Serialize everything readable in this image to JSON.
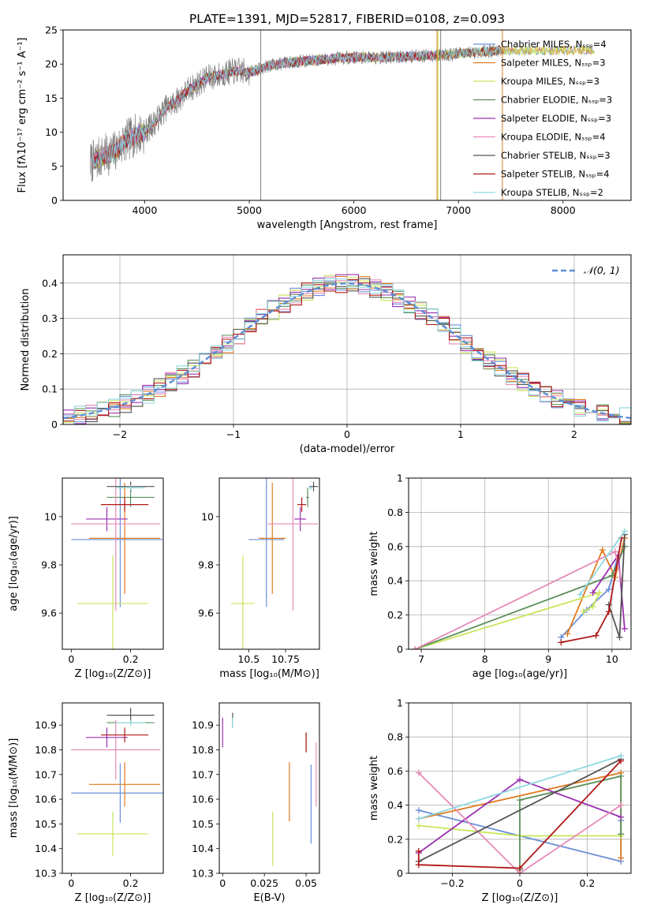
{
  "title": "PLATE=1391, MJD=52817, FIBERID=0108, z=0.093",
  "colors": [
    "#6a8fd8",
    "#e07a1f",
    "#c8e65a",
    "#5a8f5a",
    "#9a30b0",
    "#e58ab8",
    "#555555",
    "#b01818",
    "#8fd8e0"
  ],
  "chart_data": [
    {
      "id": "spectrum",
      "type": "line",
      "xlabel": "wavelength [Angstrom, rest frame]",
      "ylabel": "Flux [fλ10⁻¹⁷ erg cm⁻² s⁻¹ A⁻¹]",
      "xlim": [
        3220,
        8650
      ],
      "ylim": [
        0,
        25
      ],
      "xticks": [
        4000,
        5000,
        6000,
        7000,
        8000
      ],
      "yticks": [
        0,
        5,
        10,
        15,
        20,
        25
      ],
      "data_x": [
        3480,
        3600,
        3700,
        3800,
        3900,
        4000,
        4100,
        4200,
        4300,
        4400,
        4500,
        4600,
        4700,
        4800,
        4900,
        5000,
        5200,
        5400,
        5600,
        5800,
        6000,
        6200,
        6400,
        6600,
        6800,
        7000,
        7200,
        7400
      ],
      "data_y": [
        5.5,
        6.5,
        7.0,
        8.5,
        9.5,
        10.0,
        11.5,
        13.5,
        14.5,
        16.0,
        17.0,
        18.0,
        18.3,
        18.8,
        19.0,
        18.8,
        19.8,
        20.3,
        20.5,
        20.8,
        21.0,
        21.0,
        21.0,
        21.2,
        21.3,
        21.5,
        21.8,
        22.0
      ],
      "series": [
        {
          "name": "Chabrier MILES, Nₛₛₚ=4",
          "model_end": 8300
        },
        {
          "name": "Salpeter MILES, Nₛₛₚ=3",
          "model_end": 8300
        },
        {
          "name": "Kroupa MILES, Nₛₛₚ=3",
          "model_end": 8300
        },
        {
          "name": "Chabrier ELODIE, Nₛₛₚ=3",
          "model_end": 6800
        },
        {
          "name": "Salpeter ELODIE, Nₛₛₚ=3",
          "model_end": 6800
        },
        {
          "name": "Kroupa ELODIE, Nₛₛₚ=4",
          "model_end": 6800
        },
        {
          "name": "Chabrier STELIB, Nₛₛₚ=3",
          "model_end": 7420
        },
        {
          "name": "Salpeter STELIB, Nₛₛₚ=4",
          "model_end": 7420
        },
        {
          "name": "Kroupa STELIB, Nₛₛₚ=2",
          "model_end": 7420
        }
      ],
      "legend": "upper right"
    },
    {
      "id": "residuals",
      "type": "histogram",
      "xlabel": "(data-model)/error",
      "ylabel": "Normed distribution",
      "xlim": [
        -2.5,
        2.5
      ],
      "ylim": [
        0,
        0.48
      ],
      "xticks": [
        -2,
        -1,
        0,
        1,
        2
      ],
      "yticks": [
        0.0,
        0.1,
        0.2,
        0.3,
        0.4
      ],
      "bin_width": 0.1,
      "reference_curve": "𝒩(0, 1)",
      "legend": "upper right",
      "grid": true
    },
    {
      "id": "z-age",
      "type": "errorbar",
      "xlabel": "Z [log₁₀(Z/Z⊙)]",
      "ylabel": "age  [log₁₀(age/yr)]",
      "xlim": [
        -0.03,
        0.31
      ],
      "ylim": [
        9.45,
        10.16
      ],
      "xticks": [
        0.0,
        0.2
      ],
      "yticks": [
        9.6,
        9.8,
        10.0
      ],
      "points": [
        {
          "x": 0.165,
          "xerr": 0.165,
          "y": 9.905,
          "yerr": 0.28
        },
        {
          "x": 0.18,
          "xerr": 0.12,
          "y": 9.91,
          "yerr": 0.23
        },
        {
          "x": 0.14,
          "xerr": 0.12,
          "y": 9.64,
          "yerr": 0.2
        },
        {
          "x": 0.2,
          "xerr": 0.08,
          "y": 10.08,
          "yerr": 0.04
        },
        {
          "x": 0.12,
          "xerr": 0.07,
          "y": 9.99,
          "yerr": 0.05
        },
        {
          "x": 0.15,
          "xerr": 0.15,
          "y": 9.97,
          "yerr": 0.36
        },
        {
          "x": 0.2,
          "xerr": 0.08,
          "y": 10.125,
          "yerr": 0.02
        },
        {
          "x": 0.18,
          "xerr": 0.08,
          "y": 10.05,
          "yerr": 0.03
        },
        {
          "x": 0.2,
          "xerr": 0.05,
          "y": 10.12,
          "yerr": 0.01
        }
      ]
    },
    {
      "id": "mass-age",
      "type": "errorbar",
      "xlabel": "mass [log₁₀(M/M⊙)]",
      "ylabel": "",
      "xlim": [
        10.3,
        10.98
      ],
      "ylim": [
        9.45,
        10.16
      ],
      "xticks": [
        10.5,
        10.75
      ],
      "yticks": [
        9.6,
        9.8,
        10.0
      ],
      "points": [
        {
          "x": 10.62,
          "xerr": 0.12,
          "y": 9.905,
          "yerr": 0.28
        },
        {
          "x": 10.66,
          "xerr": 0.09,
          "y": 9.91,
          "yerr": 0.23
        },
        {
          "x": 10.46,
          "xerr": 0.08,
          "y": 9.64,
          "yerr": 0.2
        },
        {
          "x": 10.9,
          "xerr": 0.01,
          "y": 10.08,
          "yerr": 0.04
        },
        {
          "x": 10.85,
          "xerr": 0.04,
          "y": 9.99,
          "yerr": 0.05
        },
        {
          "x": 10.8,
          "xerr": 0.17,
          "y": 9.97,
          "yerr": 0.36
        },
        {
          "x": 10.94,
          "xerr": 0.03,
          "y": 10.125,
          "yerr": 0.02
        },
        {
          "x": 10.86,
          "xerr": 0.03,
          "y": 10.05,
          "yerr": 0.03
        },
        {
          "x": 10.92,
          "xerr": 0.01,
          "y": 10.12,
          "yerr": 0.01
        }
      ]
    },
    {
      "id": "age-weight",
      "type": "line",
      "xlabel": "age  [log₁₀(age/yr)]",
      "ylabel": "mass weight",
      "xlim": [
        6.8,
        10.3
      ],
      "ylim": [
        0,
        1
      ],
      "xticks": [
        7,
        8,
        9,
        10
      ],
      "yticks": [
        0.0,
        0.2,
        0.4,
        0.6,
        0.8,
        1.0
      ],
      "grid": true,
      "series": [
        {
          "x": [
            9.2,
            9.6,
            9.95,
            10.1
          ],
          "y": [
            0.07,
            0.23,
            0.35,
            0.55
          ]
        },
        {
          "x": [
            9.3,
            9.85,
            10.05,
            10.2
          ],
          "y": [
            0.09,
            0.58,
            0.42,
            0.65
          ]
        },
        {
          "x": [
            9.55,
            9.7,
            9.8,
            6.9
          ],
          "y": [
            0.22,
            0.25,
            0.33,
            0.0
          ]
        },
        {
          "x": [
            6.9,
            10.0,
            10.2
          ],
          "y": [
            0.0,
            0.43,
            0.6
          ]
        },
        {
          "x": [
            9.7,
            10.1,
            10.2
          ],
          "y": [
            0.33,
            0.55,
            0.12
          ]
        },
        {
          "x": [
            6.9,
            10.05,
            10.15
          ],
          "y": [
            0.0,
            0.57,
            0.4
          ]
        },
        {
          "x": [
            9.95,
            10.12,
            10.2
          ],
          "y": [
            0.26,
            0.07,
            0.67
          ]
        },
        {
          "x": [
            9.2,
            9.75,
            9.95,
            10.15
          ],
          "y": [
            0.04,
            0.08,
            0.22,
            0.65
          ]
        },
        {
          "x": [
            9.5,
            10.2
          ],
          "y": [
            0.32,
            0.69
          ]
        }
      ]
    },
    {
      "id": "z-mass",
      "type": "errorbar",
      "xlabel": "Z [log₁₀(Z/Z⊙)]",
      "ylabel": "mass [log₁₀(M/M⊙)]",
      "xlim": [
        -0.03,
        0.31
      ],
      "ylim": [
        10.3,
        10.99
      ],
      "xticks": [
        0.0,
        0.2
      ],
      "yticks": [
        10.3,
        10.4,
        10.5,
        10.6,
        10.7,
        10.8,
        10.9
      ],
      "points": [
        {
          "x": 0.165,
          "xerr": 0.165,
          "y": 10.625,
          "yerr": 0.12
        },
        {
          "x": 0.18,
          "xerr": 0.12,
          "y": 10.66,
          "yerr": 0.09
        },
        {
          "x": 0.14,
          "xerr": 0.12,
          "y": 10.46,
          "yerr": 0.09
        },
        {
          "x": 0.2,
          "xerr": 0.08,
          "y": 10.91,
          "yerr": 0.01
        },
        {
          "x": 0.12,
          "xerr": 0.07,
          "y": 10.85,
          "yerr": 0.04
        },
        {
          "x": 0.15,
          "xerr": 0.15,
          "y": 10.8,
          "yerr": 0.12
        },
        {
          "x": 0.2,
          "xerr": 0.08,
          "y": 10.94,
          "yerr": 0.03
        },
        {
          "x": 0.18,
          "xerr": 0.08,
          "y": 10.86,
          "yerr": 0.03
        },
        {
          "x": 0.2,
          "xerr": 0.05,
          "y": 10.91,
          "yerr": 0.01
        }
      ]
    },
    {
      "id": "ebv-mass",
      "type": "errorbar",
      "xlabel": "E(B-V)",
      "ylabel": "",
      "xlim": [
        -0.002,
        0.058
      ],
      "ylim": [
        10.3,
        10.99
      ],
      "xticks": [
        0.0,
        0.025,
        0.05
      ],
      "yticks": [
        10.3,
        10.4,
        10.5,
        10.6,
        10.7,
        10.8,
        10.9
      ],
      "points": [
        {
          "x": 0.053,
          "y": 10.58,
          "yerr": 0.16
        },
        {
          "x": 0.04,
          "y": 10.63,
          "yerr": 0.12
        },
        {
          "x": 0.03,
          "y": 10.44,
          "yerr": 0.11
        },
        {
          "x": 0.05,
          "y": 10.83,
          "yerr": 0.04
        },
        {
          "x": 0.0,
          "y": 10.87,
          "yerr": 0.06
        },
        {
          "x": 0.056,
          "y": 10.7,
          "yerr": 0.13
        },
        {
          "x": 0.006,
          "y": 10.92,
          "yerr": 0.03
        },
        {
          "x": 0.05,
          "y": 10.83,
          "yerr": 0.04
        },
        {
          "x": 0.006,
          "y": 10.91,
          "yerr": 0.02
        }
      ]
    },
    {
      "id": "z-weight",
      "type": "line",
      "xlabel": "Z [log₁₀(Z/Z⊙)]",
      "ylabel": "mass weight",
      "xlim": [
        -0.33,
        0.33
      ],
      "ylim": [
        0,
        1
      ],
      "xticks": [
        -0.2,
        0.0,
        0.2
      ],
      "yticks": [
        0.0,
        0.2,
        0.4,
        0.6,
        0.8,
        1.0
      ],
      "grid": true,
      "series": [
        {
          "x": [
            -0.3,
            0.3,
            0.3
          ],
          "y": [
            0.37,
            0.07,
            0.31
          ]
        },
        {
          "x": [
            -0.3,
            0.3,
            0.3
          ],
          "y": [
            0.32,
            0.59,
            0.09
          ]
        },
        {
          "x": [
            -0.3,
            0.0,
            0.3
          ],
          "y": [
            0.28,
            0.22,
            0.22
          ]
        },
        {
          "x": [
            0.0,
            0.0,
            0.3,
            0.3
          ],
          "y": [
            0.02,
            0.43,
            0.57,
            0.23
          ]
        },
        {
          "x": [
            -0.3,
            0.0,
            0.3
          ],
          "y": [
            0.12,
            0.55,
            0.33
          ]
        },
        {
          "x": [
            -0.3,
            0.0,
            0.3
          ],
          "y": [
            0.59,
            0.0,
            0.4
          ]
        },
        {
          "x": [
            -0.3,
            0.3
          ],
          "y": [
            0.07,
            0.67
          ]
        },
        {
          "x": [
            -0.3,
            -0.3,
            0.0,
            0.3
          ],
          "y": [
            0.13,
            0.05,
            0.03,
            0.66
          ]
        },
        {
          "x": [
            -0.3,
            0.3
          ],
          "y": [
            0.32,
            0.69
          ]
        }
      ]
    }
  ]
}
